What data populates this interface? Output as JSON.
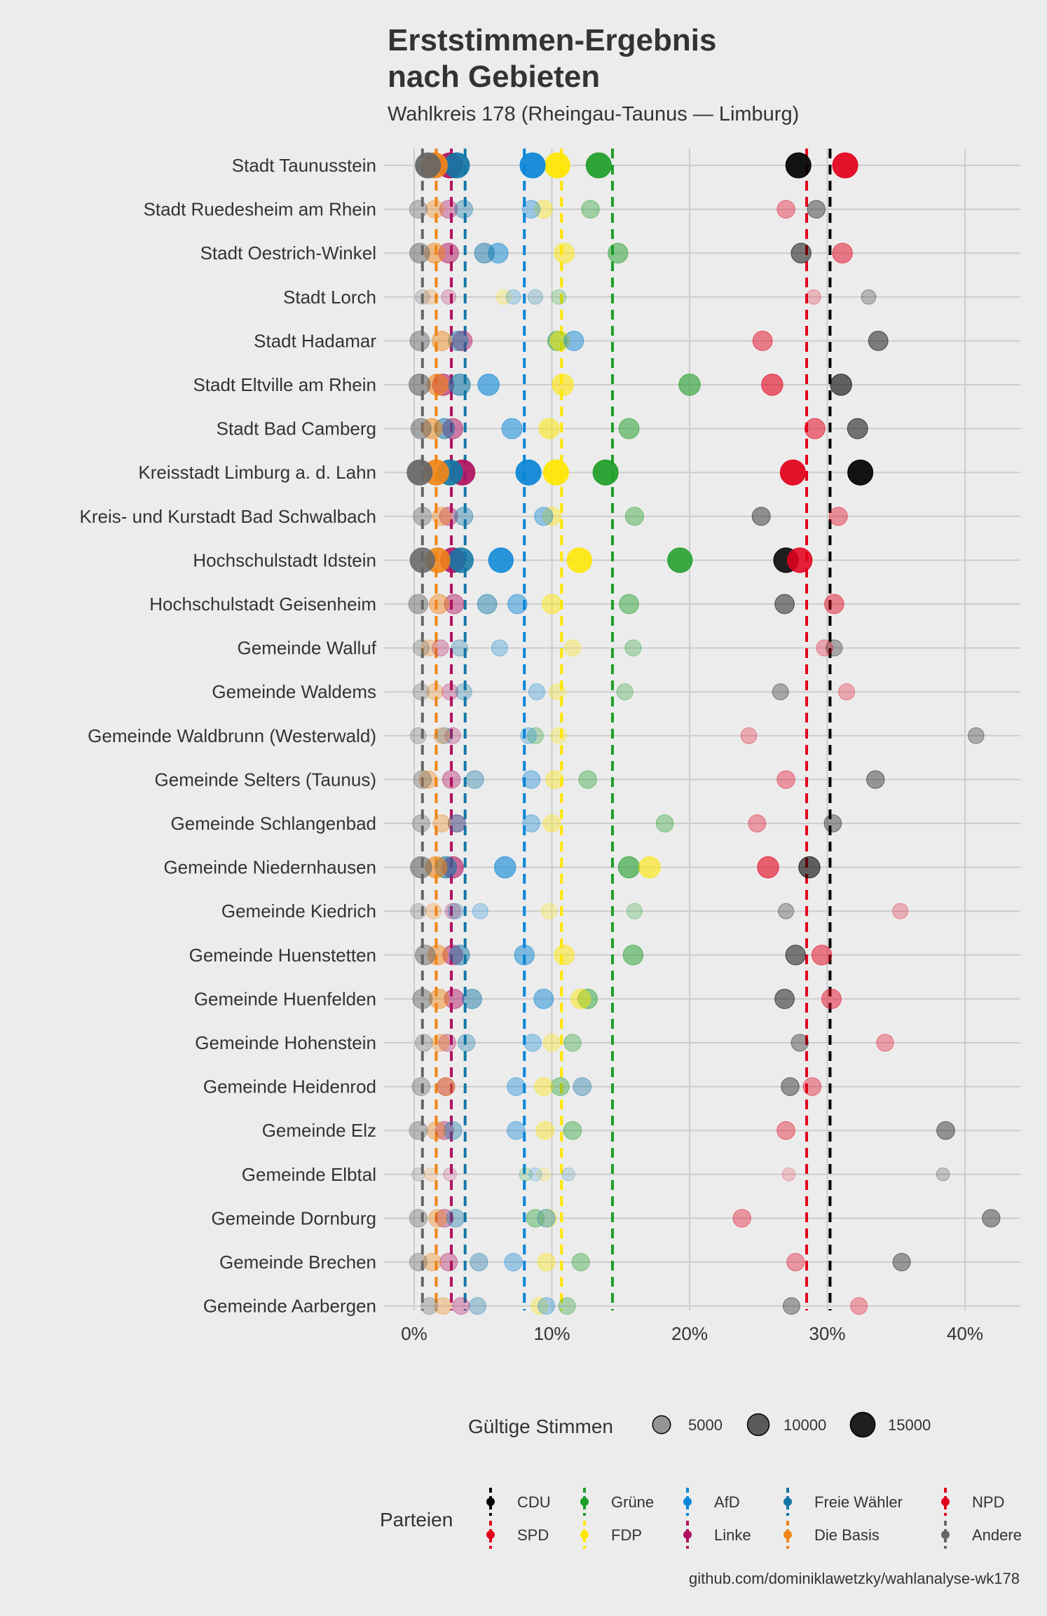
{
  "chart_data": {
    "type": "scatter",
    "title_lines": [
      "Erststimmen-Ergebnis",
      "nach Gebieten"
    ],
    "subtitle": "Wahlkreis 178 (Rheingau-Taunus — Limburg)",
    "caption": "github.com/dominiklawetzky/wahlanalyse-wk178",
    "x_ticks": [
      "0%",
      "10%",
      "20%",
      "30%",
      "40%"
    ],
    "x_tick_values": [
      0,
      10,
      20,
      30,
      40
    ],
    "xlim": [
      -1,
      44
    ],
    "grid": true,
    "size_legend": {
      "title": "Gültige Stimmen",
      "items": [
        {
          "label": "5000",
          "value": 5000
        },
        {
          "label": "10000",
          "value": 10000
        },
        {
          "label": "15000",
          "value": 15000
        }
      ]
    },
    "party_legend_title": "Parteien",
    "parties": [
      {
        "key": "CDU",
        "name": "CDU",
        "color": "#000000",
        "overall": 30.2
      },
      {
        "key": "SPD",
        "name": "SPD",
        "color": "#e3001b",
        "overall": 28.5
      },
      {
        "key": "Gruene",
        "name": "Grüne",
        "color": "#1e9e28",
        "overall": 14.4
      },
      {
        "key": "FDP",
        "name": "FDP",
        "color": "#ffe600",
        "overall": 10.7
      },
      {
        "key": "AfD",
        "name": "AfD",
        "color": "#0a86d7",
        "overall": 8.0
      },
      {
        "key": "Linke",
        "name": "Linke",
        "color": "#b0115f",
        "overall": 2.7
      },
      {
        "key": "FW",
        "name": "Freie Wähler",
        "color": "#1477a6",
        "overall": 3.7
      },
      {
        "key": "Basis",
        "name": "Die Basis",
        "color": "#f08516",
        "overall": 1.6
      },
      {
        "key": "NPD",
        "name": "NPD",
        "color": "#e3001b",
        "overall": 0.2
      },
      {
        "key": "Andere",
        "name": "Andere",
        "color": "#666666",
        "overall": 0.6
      }
    ],
    "regions": [
      {
        "name": "Stadt Taunusstein",
        "votes": 16000,
        "values": {
          "CDU": 27.9,
          "SPD": 31.3,
          "Gruene": 13.4,
          "FDP": 10.4,
          "AfD": 8.6,
          "Linke": 2.6,
          "FW": 3.1,
          "Basis": 1.5,
          "Andere": 1.0
        }
      },
      {
        "name": "Stadt Ruedesheim am Rhein",
        "votes": 5000,
        "values": {
          "CDU": 29.2,
          "SPD": 27.0,
          "Gruene": 12.8,
          "FDP": 9.4,
          "AfD": 8.5,
          "Linke": 2.5,
          "FW": 3.6,
          "Basis": 1.5,
          "Andere": 0.3
        }
      },
      {
        "name": "Stadt Oestrich-Winkel",
        "votes": 7500,
        "values": {
          "CDU": 28.1,
          "SPD": 31.1,
          "Gruene": 14.8,
          "FDP": 10.9,
          "AfD": 6.1,
          "Linke": 2.5,
          "FW": 5.1,
          "Basis": 1.5,
          "Andere": 0.4
        }
      },
      {
        "name": "Stadt Lorch",
        "votes": 2200,
        "values": {
          "CDU": 33.0,
          "SPD": 29.0,
          "Gruene": 10.5,
          "FDP": 6.5,
          "AfD": 7.2,
          "Linke": 2.5,
          "FW": 8.8,
          "Basis": 1.2,
          "Andere": 0.6
        }
      },
      {
        "name": "Stadt Hadamar",
        "votes": 7000,
        "values": {
          "CDU": 33.7,
          "SPD": 25.3,
          "Gruene": 10.4,
          "FDP": 10.6,
          "AfD": 11.6,
          "Linke": 3.5,
          "FW": 3.2,
          "Basis": 2.0,
          "Andere": 0.4
        }
      },
      {
        "name": "Stadt Eltville am Rhein",
        "votes": 9500,
        "values": {
          "CDU": 31.0,
          "SPD": 26.0,
          "Gruene": 20.0,
          "FDP": 10.8,
          "AfD": 5.4,
          "Linke": 2.1,
          "FW": 3.3,
          "Basis": 1.7,
          "Andere": 0.4
        }
      },
      {
        "name": "Stadt Bad Camberg",
        "votes": 8000,
        "values": {
          "CDU": 32.2,
          "SPD": 29.1,
          "Gruene": 15.6,
          "FDP": 9.8,
          "AfD": 7.1,
          "Linke": 2.8,
          "FW": 2.2,
          "Basis": 1.3,
          "Andere": 0.5
        }
      },
      {
        "name": "Kreisstadt Limburg a. d. Lahn",
        "votes": 16000,
        "values": {
          "CDU": 32.4,
          "SPD": 27.5,
          "Gruene": 13.9,
          "FDP": 10.3,
          "AfD": 8.3,
          "Linke": 3.5,
          "FW": 2.6,
          "Basis": 1.6,
          "Andere": 0.4
        }
      },
      {
        "name": "Kreis- und Kurstadt Bad Schwalbach",
        "votes": 5500,
        "values": {
          "CDU": 25.2,
          "SPD": 30.8,
          "Gruene": 16.0,
          "FDP": 10.0,
          "AfD": 9.4,
          "Linke": 2.5,
          "FW": 3.6,
          "Basis": 2.0,
          "Andere": 0.6
        }
      },
      {
        "name": "Hochschulstadt Idstein",
        "votes": 15000,
        "values": {
          "CDU": 27.0,
          "SPD": 28.0,
          "Gruene": 19.3,
          "FDP": 12.0,
          "AfD": 6.3,
          "Linke": 2.8,
          "FW": 3.4,
          "Basis": 1.7,
          "Andere": 0.6
        }
      },
      {
        "name": "Hochschulstadt Geisenheim",
        "votes": 6800,
        "values": {
          "CDU": 26.9,
          "SPD": 30.5,
          "Gruene": 15.6,
          "FDP": 10.0,
          "AfD": 7.5,
          "Linke": 2.9,
          "FW": 5.3,
          "Basis": 1.8,
          "Andere": 0.3
        }
      },
      {
        "name": "Gemeinde Walluf",
        "votes": 3500,
        "values": {
          "CDU": 30.5,
          "SPD": 29.8,
          "Gruene": 15.9,
          "FDP": 11.5,
          "AfD": 6.2,
          "Linke": 1.9,
          "FW": 3.3,
          "Basis": 1.1,
          "Andere": 0.5
        }
      },
      {
        "name": "Gemeinde Waldems",
        "votes": 3400,
        "values": {
          "CDU": 26.6,
          "SPD": 31.4,
          "Gruene": 15.3,
          "FDP": 10.4,
          "AfD": 8.9,
          "Linke": 2.6,
          "FW": 3.6,
          "Basis": 1.5,
          "Andere": 0.5
        }
      },
      {
        "name": "Gemeinde Waldbrunn (Westerwald)",
        "votes": 3200,
        "values": {
          "CDU": 40.8,
          "SPD": 24.3,
          "Gruene": 8.8,
          "FDP": 10.5,
          "AfD": 8.3,
          "Linke": 2.8,
          "FW": 2.2,
          "Basis": 2.0,
          "Andere": 0.3
        }
      },
      {
        "name": "Gemeinde Selters (Taunus)",
        "votes": 5000,
        "values": {
          "CDU": 33.5,
          "SPD": 27.0,
          "Gruene": 12.6,
          "FDP": 10.2,
          "AfD": 8.5,
          "Linke": 2.7,
          "FW": 4.4,
          "Basis": 1.0,
          "Andere": 0.6
        }
      },
      {
        "name": "Gemeinde Schlangenbad",
        "votes": 4500,
        "values": {
          "CDU": 30.4,
          "SPD": 24.9,
          "Gruene": 18.2,
          "FDP": 10.0,
          "AfD": 8.5,
          "Linke": 3.1,
          "FW": 3.1,
          "Basis": 2.0,
          "Andere": 0.5
        }
      },
      {
        "name": "Gemeinde Niedernhausen",
        "votes": 9500,
        "values": {
          "CDU": 28.7,
          "SPD": 25.7,
          "Gruene": 15.6,
          "FDP": 17.1,
          "AfD": 6.6,
          "Linke": 2.8,
          "FW": 2.3,
          "Basis": 1.6,
          "Andere": 0.5
        }
      },
      {
        "name": "Gemeinde Kiedrich",
        "votes": 2800,
        "values": {
          "CDU": 27.0,
          "SPD": 35.3,
          "Gruene": 16.0,
          "FDP": 9.8,
          "AfD": 4.8,
          "Linke": 2.8,
          "FW": 3.0,
          "Basis": 1.4,
          "Andere": 0.3
        }
      },
      {
        "name": "Gemeinde Huenstetten",
        "votes": 7500,
        "values": {
          "CDU": 27.7,
          "SPD": 29.6,
          "Gruene": 15.9,
          "FDP": 10.9,
          "AfD": 8.0,
          "Linke": 2.8,
          "FW": 3.3,
          "Basis": 1.7,
          "Andere": 0.8
        }
      },
      {
        "name": "Gemeinde Huenfelden",
        "votes": 7000,
        "values": {
          "CDU": 26.9,
          "SPD": 30.3,
          "Gruene": 12.6,
          "FDP": 12.1,
          "AfD": 9.4,
          "Linke": 2.9,
          "FW": 4.2,
          "Basis": 1.8,
          "Andere": 0.6
        }
      },
      {
        "name": "Gemeinde Hohenstein",
        "votes": 4200,
        "values": {
          "CDU": 28.0,
          "SPD": 34.2,
          "Gruene": 11.5,
          "FDP": 10.0,
          "AfD": 8.6,
          "Linke": 2.4,
          "FW": 3.8,
          "Basis": 1.9,
          "Andere": 0.7
        }
      },
      {
        "name": "Gemeinde Heidenrod",
        "votes": 5200,
        "values": {
          "CDU": 27.3,
          "SPD": 28.9,
          "Gruene": 10.6,
          "FDP": 9.4,
          "AfD": 7.4,
          "Linke": 2.3,
          "FW": 12.2,
          "Basis": 2.3,
          "Andere": 0.5
        }
      },
      {
        "name": "Gemeinde Elz",
        "votes": 5200,
        "values": {
          "CDU": 38.6,
          "SPD": 27.0,
          "Gruene": 11.5,
          "FDP": 9.5,
          "AfD": 7.4,
          "Linke": 2.2,
          "FW": 2.8,
          "Basis": 1.6,
          "Andere": 0.3
        }
      },
      {
        "name": "Gemeinde Elbtal",
        "votes": 1200,
        "values": {
          "CDU": 38.4,
          "SPD": 27.2,
          "Gruene": 8.1,
          "FDP": 9.4,
          "AfD": 8.8,
          "Linke": 2.6,
          "FW": 11.2,
          "Basis": 1.2,
          "Andere": 0.3
        }
      },
      {
        "name": "Gemeinde Dornburg",
        "votes": 5000,
        "values": {
          "CDU": 41.9,
          "SPD": 23.8,
          "Gruene": 8.8,
          "FDP": 9.7,
          "AfD": 9.6,
          "Linke": 2.2,
          "FW": 3.0,
          "Basis": 1.7,
          "Andere": 0.3
        }
      },
      {
        "name": "Gemeinde Brechen",
        "votes": 4800,
        "values": {
          "CDU": 35.4,
          "SPD": 27.7,
          "Gruene": 12.1,
          "FDP": 9.6,
          "AfD": 7.2,
          "Linke": 2.5,
          "FW": 4.7,
          "Basis": 1.3,
          "Andere": 0.3
        }
      },
      {
        "name": "Gemeinde Aarbergen",
        "votes": 4000,
        "values": {
          "CDU": 27.4,
          "SPD": 32.3,
          "Gruene": 11.1,
          "FDP": 9.1,
          "AfD": 9.6,
          "Linke": 3.4,
          "FW": 4.6,
          "Basis": 2.1,
          "Andere": 1.1
        }
      }
    ]
  }
}
